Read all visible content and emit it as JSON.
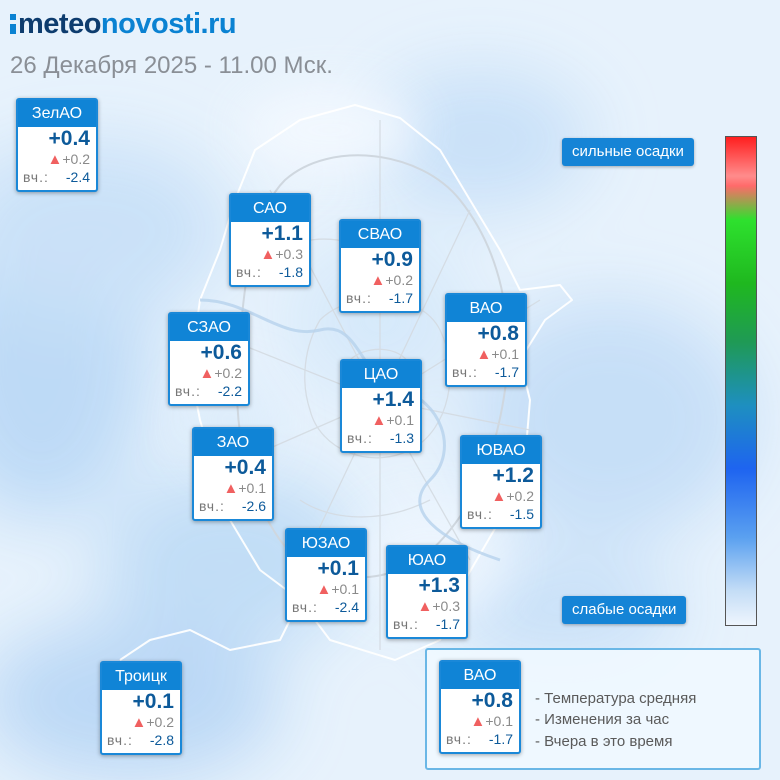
{
  "brand": {
    "part1": "meteo",
    "part2": "novosti.ru"
  },
  "subtitle": "26 Декабря 2025 - 11.00 Мск.",
  "icons": {
    "trend": "triangle-up-icon",
    "logo": "logo-mark-icon"
  },
  "colors": {
    "accent": "#1084d6",
    "temp": "#0d5a9a",
    "rise": "#f06060",
    "map_bg": "#e6f1fc"
  },
  "districts": [
    {
      "name": "ЗелАО",
      "temp": "+0.4",
      "change": "+0.2",
      "yesterday_label": "вч.:",
      "yesterday": "-2.4"
    },
    {
      "name": "САО",
      "temp": "+1.1",
      "change": "+0.3",
      "yesterday_label": "вч.:",
      "yesterday": "-1.8"
    },
    {
      "name": "СВАО",
      "temp": "+0.9",
      "change": "+0.2",
      "yesterday_label": "вч.:",
      "yesterday": "-1.7"
    },
    {
      "name": "ВАО",
      "temp": "+0.8",
      "change": "+0.1",
      "yesterday_label": "вч.:",
      "yesterday": "-1.7"
    },
    {
      "name": "СЗАО",
      "temp": "+0.6",
      "change": "+0.2",
      "yesterday_label": "вч.:",
      "yesterday": "-2.2"
    },
    {
      "name": "ЦАО",
      "temp": "+1.4",
      "change": "+0.1",
      "yesterday_label": "вч.:",
      "yesterday": "-1.3"
    },
    {
      "name": "ЗАО",
      "temp": "+0.4",
      "change": "+0.1",
      "yesterday_label": "вч.:",
      "yesterday": "-2.6"
    },
    {
      "name": "ЮВАО",
      "temp": "+1.2",
      "change": "+0.2",
      "yesterday_label": "вч.:",
      "yesterday": "-1.5"
    },
    {
      "name": "ЮЗАО",
      "temp": "+0.1",
      "change": "+0.1",
      "yesterday_label": "вч.:",
      "yesterday": "-2.4"
    },
    {
      "name": "ЮАО",
      "temp": "+1.3",
      "change": "+0.3",
      "yesterday_label": "вч.:",
      "yesterday": "-1.7"
    },
    {
      "name": "Троицк",
      "temp": "+0.1",
      "change": "+0.2",
      "yesterday_label": "вч.:",
      "yesterday": "-2.8"
    }
  ],
  "precip_scale": {
    "top_label": "сильные осадки",
    "bottom_label": "слабые осадки"
  },
  "legend": {
    "example": {
      "name": "ВАО",
      "temp": "+0.8",
      "change": "+0.1",
      "yesterday_label": "вч.:",
      "yesterday": "-1.7"
    },
    "items": [
      "- Температура средняя",
      "- Изменения за час",
      "- Вчера в это время"
    ]
  }
}
